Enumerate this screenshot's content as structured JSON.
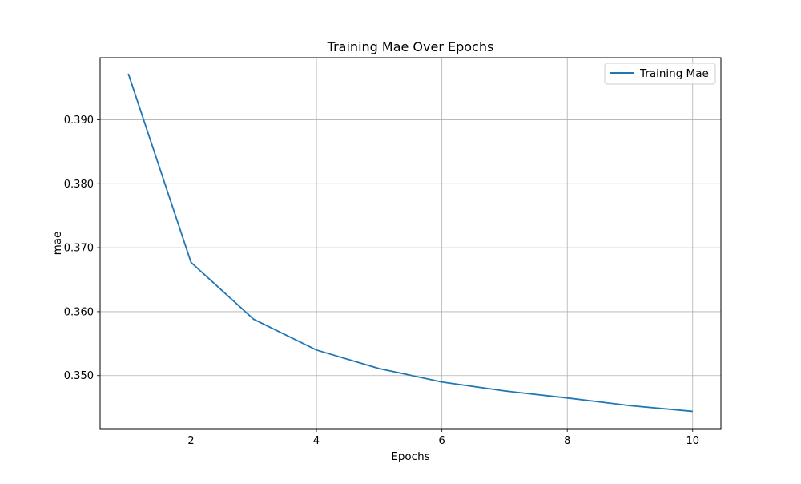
{
  "chart_data": {
    "type": "line",
    "title": "Training Mae Over Epochs",
    "xlabel": "Epochs",
    "ylabel": "mae",
    "xlim": [
      0.55,
      10.45
    ],
    "ylim": [
      0.3417,
      0.3997
    ],
    "xticks": [
      2,
      4,
      6,
      8,
      10
    ],
    "yticks": [
      0.35,
      0.36,
      0.37,
      0.38,
      0.39
    ],
    "xtick_labels": [
      "2",
      "4",
      "6",
      "8",
      "10"
    ],
    "ytick_labels": [
      "0.350",
      "0.360",
      "0.370",
      "0.380",
      "0.390"
    ],
    "grid": true,
    "legend_position": "top-right",
    "x": [
      1,
      2,
      3,
      4,
      5,
      6,
      7,
      8,
      9,
      10
    ],
    "series": [
      {
        "name": "Training Mae",
        "color": "#1f77b4",
        "values": [
          0.3972,
          0.3677,
          0.3588,
          0.354,
          0.3511,
          0.349,
          0.3476,
          0.3465,
          0.3453,
          0.3444
        ]
      }
    ]
  }
}
